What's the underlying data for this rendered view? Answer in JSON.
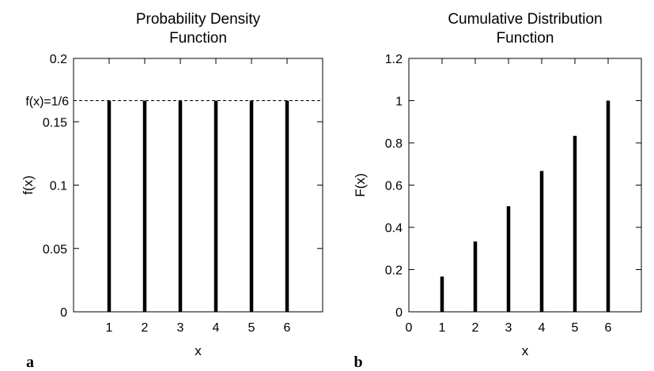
{
  "chart_data": [
    {
      "panel_label": "a",
      "type": "bar",
      "title": [
        "Probability Density",
        "Function"
      ],
      "xlabel": "x",
      "ylabel": "f(x)",
      "categories": [
        "1",
        "2",
        "3",
        "4",
        "5",
        "6"
      ],
      "x": [
        1,
        2,
        3,
        4,
        5,
        6
      ],
      "values": [
        0.1667,
        0.1667,
        0.1667,
        0.1667,
        0.1667,
        0.1667
      ],
      "xlim": [
        0,
        7
      ],
      "ylim": [
        0,
        0.2
      ],
      "yticks": [
        0,
        0.05,
        0.1,
        0.15,
        0.2
      ],
      "ytick_labels": [
        "0",
        "0.05",
        "0.1",
        "0.15",
        "0.2"
      ],
      "reference_line": {
        "y": 0.1667,
        "label": "f(x)=1/6",
        "style": "dashed"
      },
      "grid": false,
      "colors": {
        "bars": "#000000",
        "axes": "#000000"
      }
    },
    {
      "panel_label": "b",
      "type": "bar",
      "title": [
        "Cumulative Distribution",
        "Function"
      ],
      "xlabel": "x",
      "ylabel": "F(x)",
      "categories": [
        "0",
        "1",
        "2",
        "3",
        "4",
        "5",
        "6"
      ],
      "x": [
        1,
        2,
        3,
        4,
        5,
        6
      ],
      "values": [
        0.1667,
        0.3333,
        0.5,
        0.6667,
        0.8333,
        1.0
      ],
      "xlim": [
        0,
        7
      ],
      "xticks": [
        0,
        1,
        2,
        3,
        4,
        5,
        6
      ],
      "ylim": [
        0,
        1.2
      ],
      "yticks": [
        0,
        0.2,
        0.4,
        0.6,
        0.8,
        1,
        1.2
      ],
      "ytick_labels": [
        "0",
        "0.2",
        "0.4",
        "0.6",
        "0.8",
        "1",
        "1.2"
      ],
      "grid": false,
      "colors": {
        "bars": "#000000",
        "axes": "#000000"
      }
    }
  ]
}
